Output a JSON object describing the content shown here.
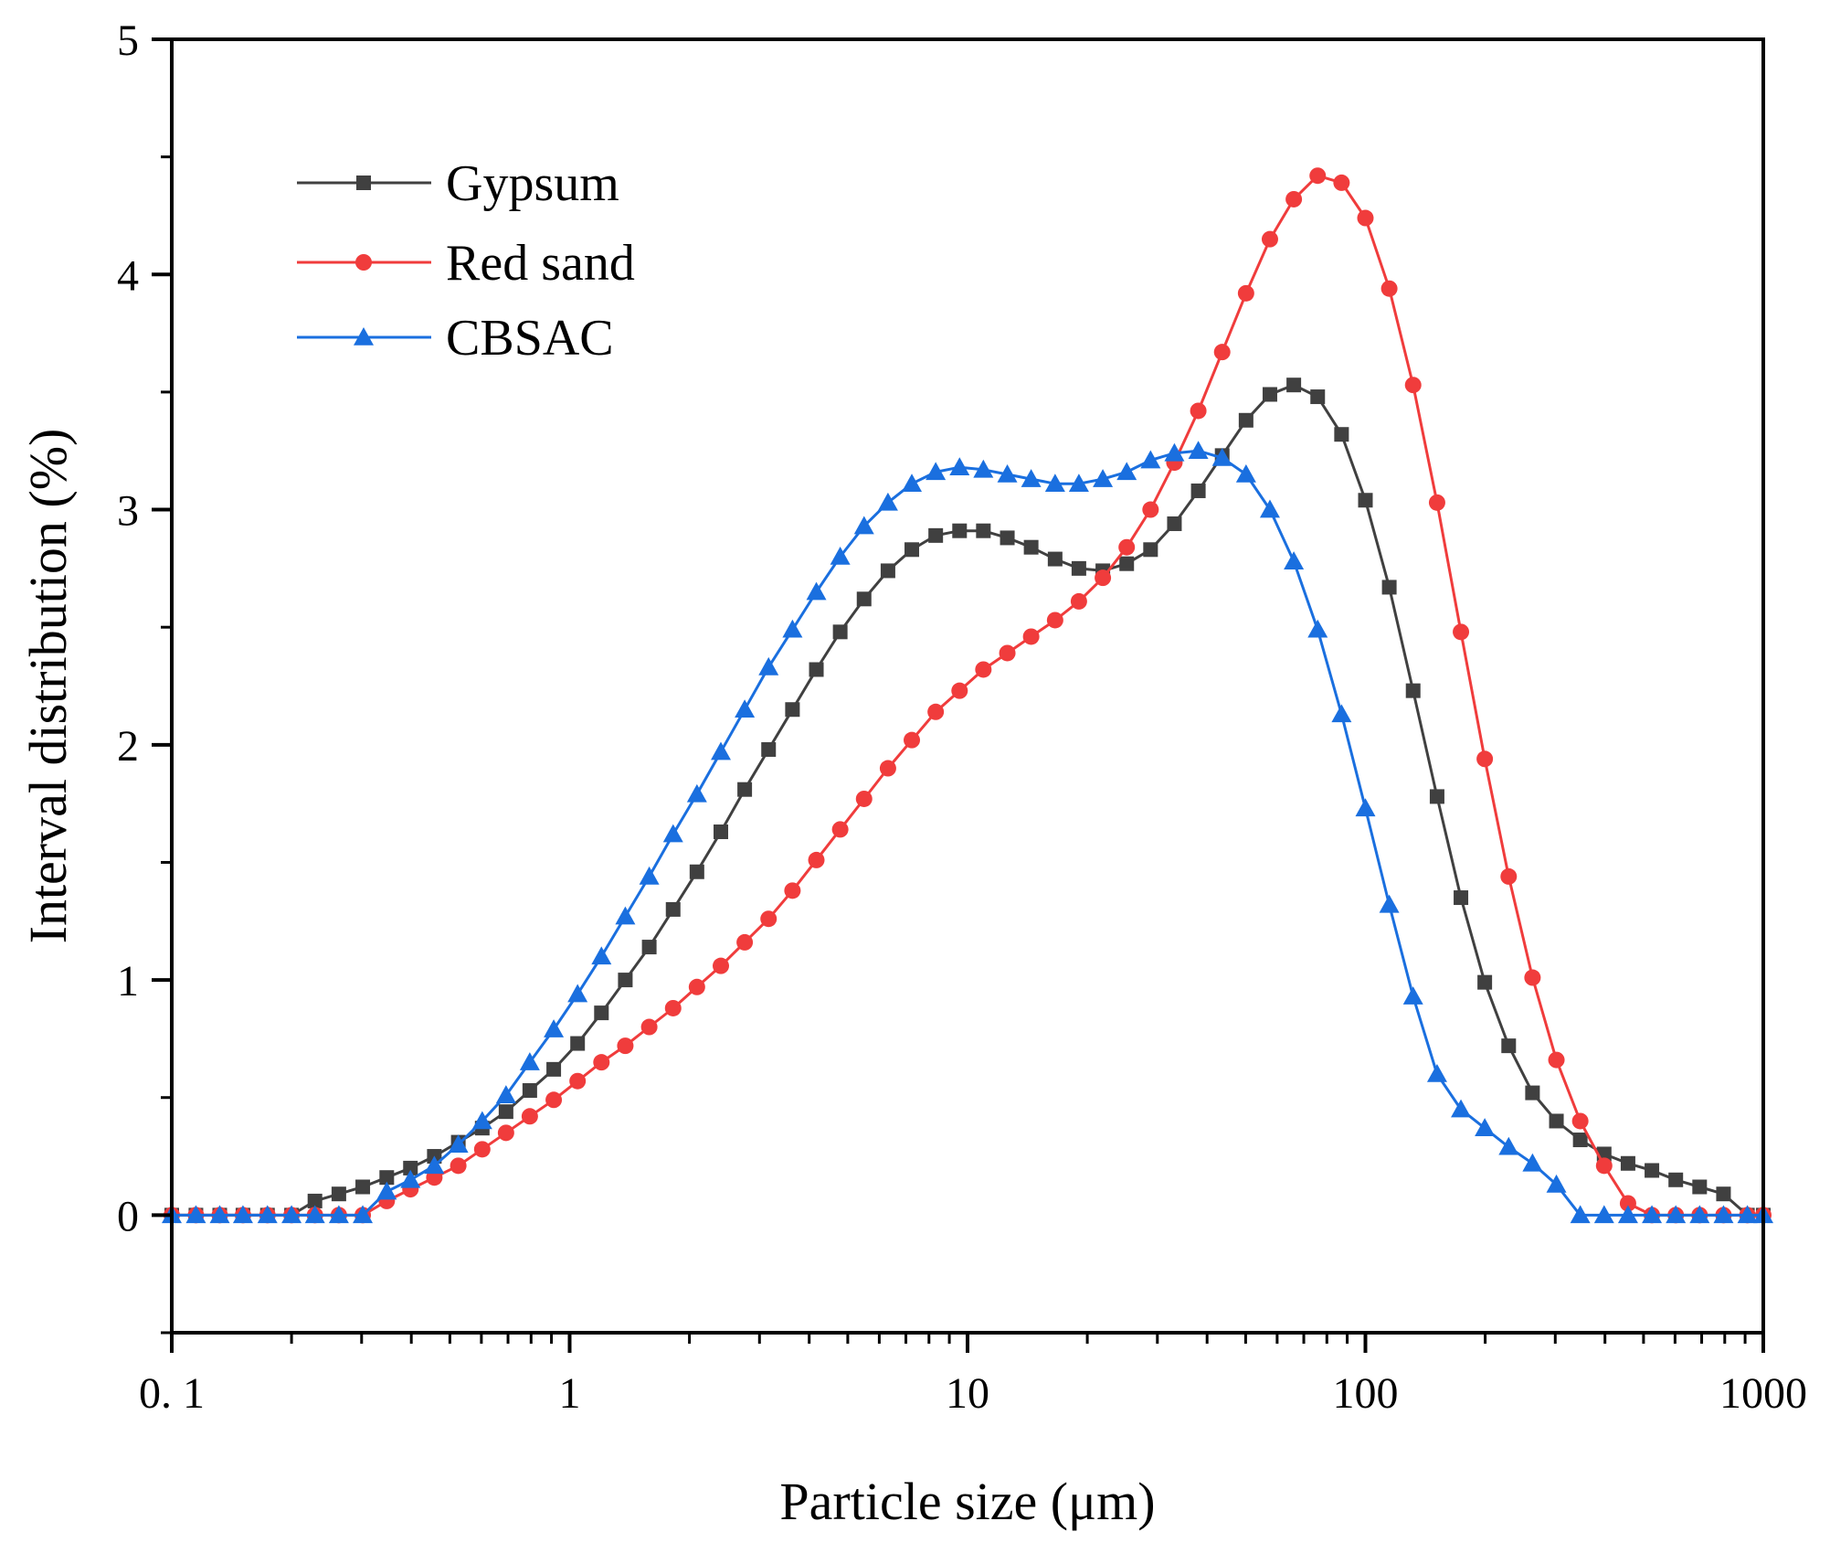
{
  "chart_data": {
    "type": "line",
    "xscale": "log",
    "xlabel": "Particle size (μm)",
    "ylabel": "Interval distribution (%)",
    "xlim": [
      0.1,
      1000
    ],
    "ylim": [
      -0.5,
      5
    ],
    "x_ticks": [
      0.1,
      1,
      10,
      100,
      1000
    ],
    "x_tick_labels": [
      "0. 1",
      "1",
      "10",
      "100",
      "1000"
    ],
    "y_ticks": [
      0,
      1,
      2,
      3,
      4,
      5
    ],
    "y_tick_labels": [
      "0",
      "1",
      "2",
      "3",
      "4",
      "5"
    ],
    "legend_position": "top-left",
    "x": [
      0.1,
      0.115,
      0.132,
      0.151,
      0.174,
      0.2,
      0.229,
      0.263,
      0.302,
      0.347,
      0.398,
      0.457,
      0.525,
      0.603,
      0.692,
      0.794,
      0.912,
      1.047,
      1.202,
      1.38,
      1.585,
      1.82,
      2.089,
      2.399,
      2.754,
      3.162,
      3.631,
      4.169,
      4.786,
      5.495,
      6.31,
      7.244,
      8.318,
      9.55,
      10.96,
      12.59,
      14.45,
      16.6,
      19.05,
      21.88,
      25.12,
      28.84,
      33.11,
      38.02,
      43.65,
      50.12,
      57.54,
      66.07,
      75.86,
      87.1,
      100.0,
      114.8,
      131.8,
      151.4,
      173.8,
      199.5,
      229.1,
      263.0,
      302.0,
      346.7,
      398.1,
      457.1,
      524.8,
      602.6,
      691.8,
      794.3,
      912.0,
      1000.0
    ],
    "series": [
      {
        "name": "Gypsum",
        "color": "#404040",
        "marker": "square",
        "values": [
          0,
          0,
          0,
          0,
          0,
          0,
          0.06,
          0.09,
          0.12,
          0.16,
          0.2,
          0.25,
          0.31,
          0.37,
          0.44,
          0.53,
          0.62,
          0.73,
          0.86,
          1.0,
          1.14,
          1.3,
          1.46,
          1.63,
          1.81,
          1.98,
          2.15,
          2.32,
          2.48,
          2.62,
          2.74,
          2.83,
          2.89,
          2.91,
          2.91,
          2.88,
          2.84,
          2.79,
          2.75,
          2.74,
          2.77,
          2.83,
          2.94,
          3.08,
          3.23,
          3.38,
          3.49,
          3.53,
          3.48,
          3.32,
          3.04,
          2.67,
          2.23,
          1.78,
          1.35,
          0.99,
          0.72,
          0.52,
          0.4,
          0.32,
          0.26,
          0.22,
          0.19,
          0.15,
          0.12,
          0.09,
          0,
          0
        ]
      },
      {
        "name": "Red sand",
        "color": "#f03c3c",
        "marker": "circle",
        "values": [
          0,
          0,
          0,
          0,
          0,
          0,
          0,
          0,
          0,
          0.06,
          0.11,
          0.16,
          0.21,
          0.28,
          0.35,
          0.42,
          0.49,
          0.57,
          0.65,
          0.72,
          0.8,
          0.88,
          0.97,
          1.06,
          1.16,
          1.26,
          1.38,
          1.51,
          1.64,
          1.77,
          1.9,
          2.02,
          2.14,
          2.23,
          2.32,
          2.39,
          2.46,
          2.53,
          2.61,
          2.71,
          2.84,
          3.0,
          3.2,
          3.42,
          3.67,
          3.92,
          4.15,
          4.32,
          4.42,
          4.39,
          4.24,
          3.94,
          3.53,
          3.03,
          2.48,
          1.94,
          1.44,
          1.01,
          0.66,
          0.4,
          0.21,
          0.05,
          0,
          0,
          0,
          0,
          0,
          0
        ]
      },
      {
        "name": "CBSAC",
        "color": "#1a6fdf",
        "marker": "triangle",
        "values": [
          0,
          0,
          0,
          0,
          0,
          0,
          0,
          0,
          0,
          0.1,
          0.15,
          0.21,
          0.3,
          0.4,
          0.51,
          0.65,
          0.79,
          0.94,
          1.1,
          1.27,
          1.44,
          1.62,
          1.79,
          1.97,
          2.15,
          2.33,
          2.49,
          2.65,
          2.8,
          2.93,
          3.03,
          3.11,
          3.16,
          3.18,
          3.17,
          3.15,
          3.13,
          3.11,
          3.11,
          3.13,
          3.16,
          3.21,
          3.24,
          3.25,
          3.22,
          3.15,
          3.0,
          2.78,
          2.49,
          2.13,
          1.73,
          1.32,
          0.93,
          0.6,
          0.45,
          0.37,
          0.29,
          0.22,
          0.13,
          0,
          0,
          0,
          0,
          0,
          0,
          0,
          0,
          0
        ]
      }
    ]
  }
}
